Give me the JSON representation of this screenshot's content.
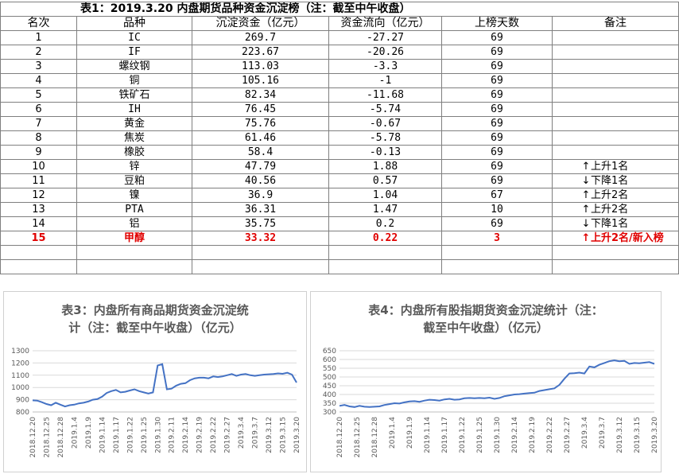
{
  "table": {
    "title": "表1：2019.3.20 内盘期货品种资金沉淀榜（注：截至中午收盘）",
    "headers": [
      "名次",
      "品种",
      "沉淀资金（亿元）",
      "资金流向（亿元）",
      "上榜天数",
      "备注"
    ],
    "rows": [
      {
        "rank": "1",
        "name": "IC",
        "funds": "269.7",
        "flow": "-27.27",
        "days": "69",
        "note": "",
        "arrow": ""
      },
      {
        "rank": "2",
        "name": "IF",
        "funds": "223.67",
        "flow": "-20.26",
        "days": "69",
        "note": "",
        "arrow": ""
      },
      {
        "rank": "3",
        "name": "螺纹钢",
        "funds": "113.03",
        "flow": "-3.3",
        "days": "69",
        "note": "",
        "arrow": ""
      },
      {
        "rank": "4",
        "name": "铜",
        "funds": "105.16",
        "flow": "-1",
        "days": "69",
        "note": "",
        "arrow": ""
      },
      {
        "rank": "5",
        "name": "铁矿石",
        "funds": "82.34",
        "flow": "-11.68",
        "days": "69",
        "note": "",
        "arrow": ""
      },
      {
        "rank": "6",
        "name": "IH",
        "funds": "76.45",
        "flow": "-5.74",
        "days": "69",
        "note": "",
        "arrow": ""
      },
      {
        "rank": "7",
        "name": "黄金",
        "funds": "75.76",
        "flow": "-0.67",
        "days": "69",
        "note": "",
        "arrow": ""
      },
      {
        "rank": "8",
        "name": "焦炭",
        "funds": "61.46",
        "flow": "-5.78",
        "days": "69",
        "note": "",
        "arrow": ""
      },
      {
        "rank": "9",
        "name": "橡胶",
        "funds": "58.4",
        "flow": "-0.13",
        "days": "69",
        "note": "",
        "arrow": ""
      },
      {
        "rank": "10",
        "name": "锌",
        "funds": "47.79",
        "flow": "1.88",
        "days": "69",
        "note": "上升1名",
        "arrow": "↑"
      },
      {
        "rank": "11",
        "name": "豆粕",
        "funds": "40.56",
        "flow": "0.57",
        "days": "69",
        "note": "下降1名",
        "arrow": "↓"
      },
      {
        "rank": "12",
        "name": "镍",
        "funds": "36.9",
        "flow": "1.04",
        "days": "67",
        "note": "上升2名",
        "arrow": "↑"
      },
      {
        "rank": "13",
        "name": "PTA",
        "funds": "36.31",
        "flow": "1.47",
        "days": "10",
        "note": "上升2名",
        "arrow": "↑"
      },
      {
        "rank": "14",
        "name": "铝",
        "funds": "35.75",
        "flow": "0.2",
        "days": "69",
        "note": "下降1名",
        "arrow": "↓"
      },
      {
        "rank": "15",
        "name": "甲醇",
        "funds": "33.32",
        "flow": "0.22",
        "days": "3",
        "note": "上升2名/新入榜",
        "arrow": "↑"
      }
    ]
  },
  "chart_data": [
    {
      "type": "line",
      "title": "表3：内盘所有商品期货资金沉淀统计（注：截至中午收盘）（亿元）",
      "title_lines": [
        "表3：内盘所有商品期货资金沉淀统",
        "计（注：截至中午收盘）（亿元）"
      ],
      "ylim": [
        800,
        1300
      ],
      "yticks": [
        800,
        900,
        1000,
        1100,
        1200,
        1300
      ],
      "xtick_labels": [
        "2018.12.20",
        "2018.12.25",
        "2018.12.28",
        "2019.1.4",
        "2019.1.9",
        "2019.1.14",
        "2019.1.17",
        "2019.1.22",
        "2019.1.25",
        "2019.1.30",
        "2019.2.11",
        "2019.2.14",
        "2019.2.19",
        "2019.2.22",
        "2019.2.27",
        "2019.3.4",
        "2019.3.7",
        "2019.3.12",
        "2019.3.15",
        "2019.3.20"
      ],
      "values": [
        895,
        893,
        880,
        865,
        855,
        875,
        860,
        845,
        855,
        860,
        870,
        875,
        885,
        900,
        905,
        925,
        955,
        970,
        980,
        960,
        965,
        975,
        985,
        970,
        960,
        950,
        960,
        1180,
        1190,
        985,
        990,
        1015,
        1030,
        1035,
        1060,
        1075,
        1080,
        1080,
        1075,
        1090,
        1085,
        1090,
        1100,
        1110,
        1095,
        1105,
        1110,
        1100,
        1095,
        1100,
        1105,
        1108,
        1110,
        1115,
        1112,
        1120,
        1105,
        1040
      ],
      "color": "#4472c4"
    },
    {
      "type": "line",
      "title": "表4：内盘所有股指期货资金沉淀统计（注：截至中午收盘）（亿元）",
      "title_lines": [
        "表4：内盘所有股指期货资金沉淀统计（注：",
        "截至中午收盘）（亿元）"
      ],
      "ylim": [
        300,
        650
      ],
      "yticks": [
        300,
        350,
        400,
        450,
        500,
        550,
        600,
        650
      ],
      "xtick_labels": [
        "2018.12.20",
        "2018.12.25",
        "2018.12.28",
        "2019.1.4",
        "2019.1.9",
        "2019.1.14",
        "2019.1.17",
        "2019.1.22",
        "2019.1.25",
        "2019.1.30",
        "2019.2.14",
        "2019.2.19",
        "2019.2.22",
        "2019.2.27",
        "2019.3.4",
        "2019.3.7",
        "2019.3.12",
        "2019.3.15",
        "2019.3.20"
      ],
      "values": [
        335,
        340,
        332,
        328,
        335,
        330,
        328,
        330,
        332,
        340,
        345,
        350,
        348,
        355,
        360,
        362,
        358,
        365,
        370,
        368,
        365,
        372,
        375,
        370,
        372,
        378,
        380,
        378,
        380,
        378,
        382,
        375,
        380,
        390,
        395,
        400,
        402,
        405,
        408,
        410,
        420,
        425,
        430,
        435,
        455,
        490,
        520,
        522,
        525,
        520,
        560,
        555,
        570,
        580,
        590,
        595,
        590,
        592,
        575,
        580,
        578,
        582,
        585,
        575
      ],
      "color": "#4472c4"
    }
  ]
}
